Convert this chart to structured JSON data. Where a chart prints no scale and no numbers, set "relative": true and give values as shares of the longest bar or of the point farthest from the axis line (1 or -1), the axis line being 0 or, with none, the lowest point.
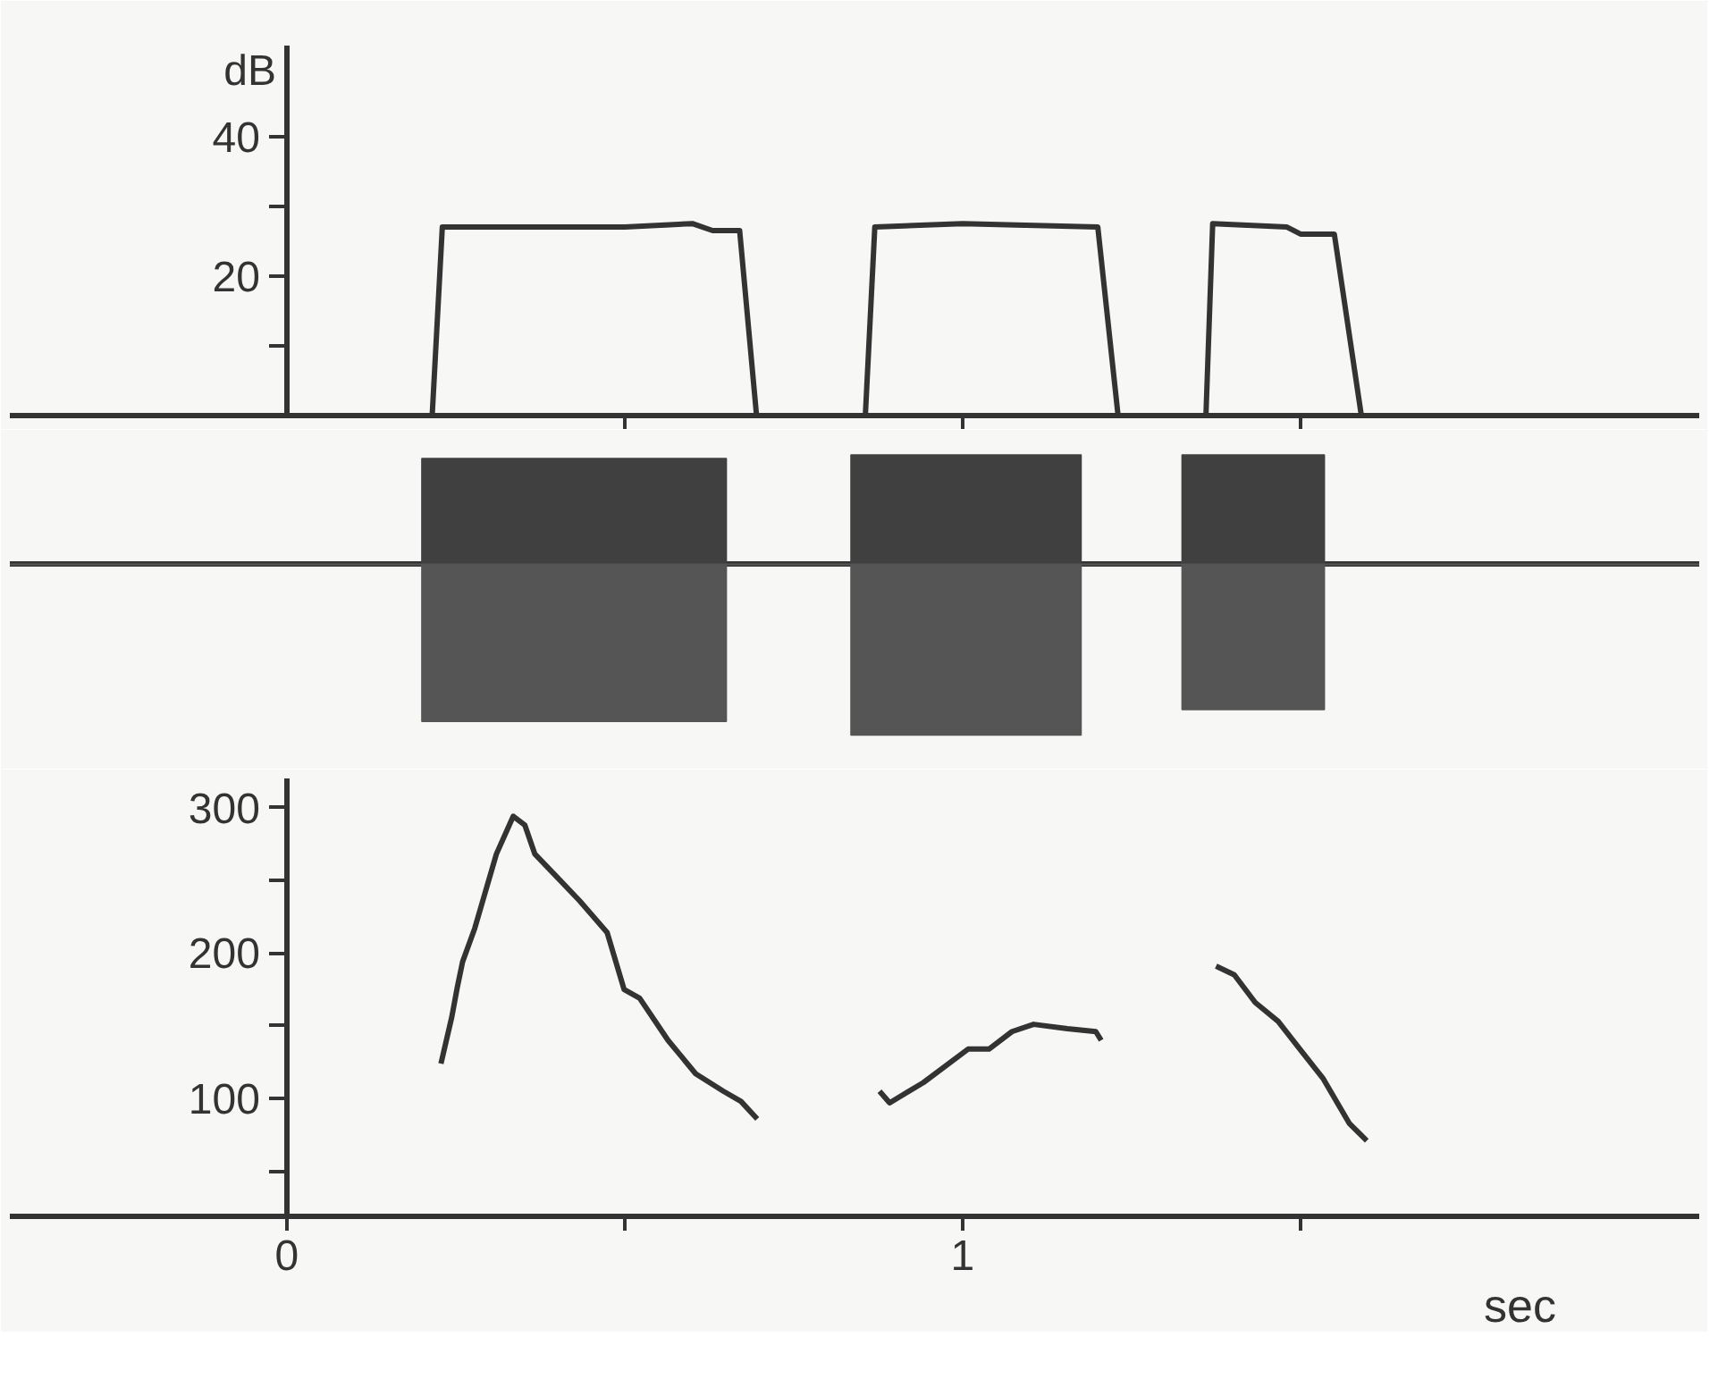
{
  "chart_data": [
    {
      "type": "line",
      "ylabel": "dB",
      "x": [
        -0.41,
        0.215,
        0.23,
        0.5,
        0.6,
        0.63,
        0.67,
        0.695,
        0.856,
        0.87,
        1.0,
        1.2,
        1.23,
        1.36,
        1.37,
        1.48,
        1.5,
        1.55,
        1.59,
        2.09
      ],
      "series": [
        {
          "color": "#333333",
          "values": [
            0,
            0,
            27,
            27,
            27.5,
            26.5,
            26.5,
            0,
            0,
            27,
            27.5,
            27,
            0,
            0,
            27.5,
            27,
            26,
            26,
            0,
            0
          ]
        }
      ],
      "xlim": [
        -0.41,
        2.09
      ],
      "xticks": [
        {
          "value": 0.5,
          "label": null
        },
        {
          "value": 1,
          "label": null
        },
        {
          "value": 1.5,
          "label": null
        }
      ],
      "ylim": [
        0,
        53
      ],
      "yticks": [
        {
          "value": 10,
          "label": null
        },
        20,
        {
          "value": 30,
          "label": null
        },
        40
      ],
      "tick_labels": "y"
    },
    {
      "type": "area",
      "relative": true,
      "x": [
        -0.41,
        0.2,
        0.2,
        0.65,
        0.65,
        0.835,
        0.835,
        1.175,
        1.175,
        1.325,
        1.325,
        1.535,
        1.535,
        2.09
      ],
      "series": [
        {
          "color": "#404040",
          "values": [
            0,
            0,
            0.62,
            0.62,
            0,
            0,
            0.64,
            0.64,
            0,
            0,
            0.64,
            0.64,
            0,
            0
          ]
        },
        {
          "color": "#555555",
          "values": [
            0,
            0,
            -0.92,
            -0.92,
            0,
            0,
            -1,
            -1,
            0,
            0,
            -0.85,
            -0.85,
            0,
            0
          ]
        }
      ],
      "xlim": [
        -0.41,
        2.09
      ],
      "tick_labels": false
    },
    {
      "type": "line",
      "xlabel": "sec",
      "x": [
        0.228,
        0.244,
        0.252,
        0.26,
        0.278,
        0.31,
        0.335,
        0.352,
        0.367,
        0.4,
        0.433,
        0.474,
        0.499,
        0.522,
        0.564,
        0.605,
        0.646,
        0.672,
        0.696,
        0.78,
        0.877,
        0.892,
        0.942,
        1.008,
        1.039,
        1.073,
        1.105,
        1.155,
        1.197,
        1.205,
        1.3,
        1.375,
        1.402,
        1.433,
        1.467,
        1.499,
        1.533,
        1.572,
        1.598
      ],
      "series": [
        {
          "color": "#333333",
          "values": [
            124,
            156,
            176,
            194,
            217,
            268,
            294,
            288,
            268,
            252,
            236,
            214,
            175,
            169,
            140,
            117,
            105,
            98,
            86,
            null,
            105,
            97,
            111,
            134,
            134,
            146,
            151,
            148,
            146,
            140,
            null,
            191,
            185,
            166,
            153,
            134,
            114,
            83,
            71
          ]
        }
      ],
      "xlim": [
        -0.41,
        2.09
      ],
      "xticks": [
        0,
        {
          "value": 0.5,
          "label": null
        },
        1,
        {
          "value": 1.5,
          "label": null
        }
      ],
      "ylim": [
        19,
        320
      ],
      "yticks": [
        {
          "value": 50,
          "label": null
        },
        100,
        {
          "value": 150,
          "label": null
        },
        200,
        {
          "value": 250,
          "label": null
        },
        300
      ]
    }
  ]
}
